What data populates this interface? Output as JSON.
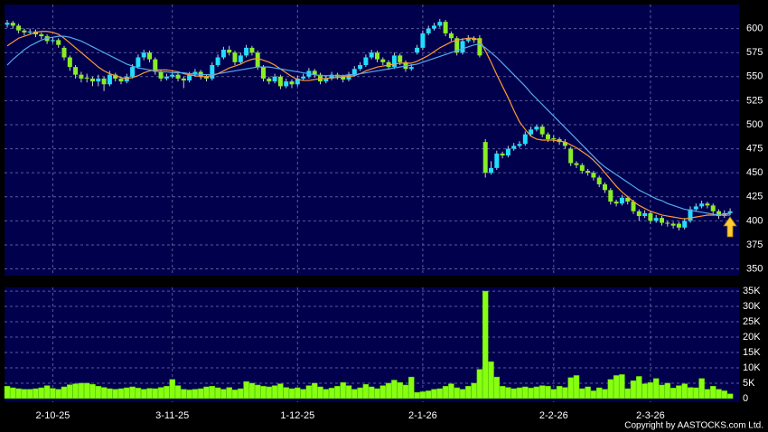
{
  "chart_data": [
    {
      "type": "candlestick",
      "up_color": "#22ddff",
      "down_color": "#88ee22",
      "ylim": [
        343,
        625
      ],
      "yticks": [
        350,
        375,
        400,
        425,
        450,
        475,
        500,
        525,
        550,
        575,
        600
      ],
      "grid": true,
      "ohlc": [
        [
          604,
          609,
          601,
          606
        ],
        [
          606,
          608,
          600,
          603
        ],
        [
          603,
          605,
          595,
          598
        ],
        [
          598,
          600,
          593,
          596
        ],
        [
          596,
          600,
          594,
          597
        ],
        [
          597,
          599,
          591,
          594
        ],
        [
          594,
          596,
          589,
          592
        ],
        [
          592,
          594,
          584,
          587
        ],
        [
          587,
          591,
          585,
          588
        ],
        [
          588,
          590,
          580,
          583
        ],
        [
          580,
          582,
          567,
          570
        ],
        [
          570,
          572,
          556,
          560
        ],
        [
          560,
          562,
          548,
          552
        ],
        [
          552,
          555,
          544,
          548
        ],
        [
          549,
          553,
          544,
          548
        ],
        [
          548,
          550,
          540,
          545
        ],
        [
          545,
          552,
          540,
          548
        ],
        [
          548,
          550,
          535,
          542
        ],
        [
          542,
          556,
          540,
          552
        ],
        [
          552,
          554,
          545,
          548
        ],
        [
          548,
          550,
          542,
          545
        ],
        [
          545,
          553,
          543,
          550
        ],
        [
          550,
          563,
          548,
          560
        ],
        [
          560,
          573,
          558,
          570
        ],
        [
          570,
          578,
          567,
          575
        ],
        [
          575,
          577,
          565,
          568
        ],
        [
          568,
          570,
          552,
          555
        ],
        [
          555,
          557,
          545,
          548
        ],
        [
          548,
          553,
          546,
          550
        ],
        [
          550,
          555,
          548,
          552
        ],
        [
          552,
          554,
          545,
          548
        ],
        [
          548,
          550,
          538,
          546
        ],
        [
          546,
          555,
          544,
          552
        ],
        [
          552,
          558,
          550,
          555
        ],
        [
          555,
          557,
          547,
          550
        ],
        [
          550,
          552,
          545,
          548
        ],
        [
          548,
          565,
          546,
          562
        ],
        [
          562,
          573,
          560,
          570
        ],
        [
          570,
          581,
          568,
          578
        ],
        [
          578,
          582,
          572,
          575
        ],
        [
          575,
          577,
          562,
          565
        ],
        [
          565,
          575,
          563,
          572
        ],
        [
          572,
          583,
          570,
          580
        ],
        [
          580,
          582,
          572,
          575
        ],
        [
          575,
          577,
          557,
          560
        ],
        [
          560,
          562,
          545,
          548
        ],
        [
          548,
          550,
          542,
          545
        ],
        [
          545,
          553,
          543,
          550
        ],
        [
          550,
          552,
          537,
          540
        ],
        [
          540,
          548,
          538,
          545
        ],
        [
          545,
          547,
          538,
          542
        ],
        [
          542,
          551,
          540,
          548
        ],
        [
          548,
          553,
          546,
          550
        ],
        [
          550,
          559,
          548,
          556
        ],
        [
          556,
          558,
          549,
          552
        ],
        [
          552,
          554,
          542,
          545
        ],
        [
          545,
          551,
          543,
          548
        ],
        [
          548,
          555,
          546,
          552
        ],
        [
          552,
          554,
          547,
          550
        ],
        [
          550,
          552,
          544,
          547
        ],
        [
          547,
          555,
          545,
          552
        ],
        [
          552,
          561,
          550,
          558
        ],
        [
          558,
          565,
          556,
          562
        ],
        [
          562,
          573,
          560,
          570
        ],
        [
          570,
          578,
          568,
          575
        ],
        [
          575,
          577,
          565,
          568
        ],
        [
          568,
          570,
          562,
          565
        ],
        [
          565,
          567,
          557,
          560
        ],
        [
          560,
          575,
          558,
          572
        ],
        [
          572,
          574,
          562,
          565
        ],
        [
          565,
          567,
          555,
          558
        ],
        [
          558,
          563,
          556,
          560
        ],
        [
          575,
          583,
          573,
          580
        ],
        [
          580,
          598,
          578,
          595
        ],
        [
          595,
          603,
          593,
          600
        ],
        [
          600,
          606,
          598,
          603
        ],
        [
          603,
          610,
          601,
          607
        ],
        [
          607,
          609,
          592,
          595
        ],
        [
          595,
          597,
          587,
          590
        ],
        [
          590,
          592,
          572,
          575
        ],
        [
          575,
          590,
          573,
          587
        ],
        [
          587,
          593,
          585,
          590
        ],
        [
          590,
          592,
          585,
          588
        ],
        [
          590,
          593,
          570,
          572
        ],
        [
          482,
          485,
          445,
          450
        ],
        [
          450,
          462,
          448,
          455
        ],
        [
          455,
          473,
          453,
          470
        ],
        [
          470,
          472,
          465,
          468
        ],
        [
          468,
          478,
          466,
          475
        ],
        [
          475,
          481,
          473,
          478
        ],
        [
          478,
          483,
          476,
          480
        ],
        [
          480,
          493,
          478,
          490
        ],
        [
          490,
          498,
          488,
          495
        ],
        [
          495,
          500,
          493,
          498
        ],
        [
          498,
          500,
          487,
          490
        ],
        [
          490,
          492,
          482,
          485
        ],
        [
          486,
          489,
          482,
          485
        ],
        [
          485,
          487,
          479,
          482
        ],
        [
          482,
          485,
          475,
          478
        ],
        [
          475,
          477,
          457,
          460
        ],
        [
          460,
          462,
          455,
          458
        ],
        [
          458,
          460,
          449,
          452
        ],
        [
          452,
          454,
          447,
          450
        ],
        [
          450,
          452,
          442,
          445
        ],
        [
          445,
          447,
          435,
          438
        ],
        [
          438,
          440,
          429,
          432
        ],
        [
          432,
          434,
          417,
          420
        ],
        [
          420,
          422,
          415,
          418
        ],
        [
          418,
          427,
          416,
          424
        ],
        [
          424,
          426,
          417,
          420
        ],
        [
          420,
          422,
          407,
          410
        ],
        [
          410,
          412,
          400,
          405
        ],
        [
          405,
          411,
          403,
          408
        ],
        [
          408,
          410,
          397,
          400
        ],
        [
          400,
          406,
          398,
          403
        ],
        [
          403,
          405,
          395,
          398
        ],
        [
          398,
          400,
          394,
          397
        ],
        [
          397,
          399,
          392,
          395
        ],
        [
          397,
          399,
          390,
          393
        ],
        [
          393,
          403,
          391,
          400
        ],
        [
          400,
          415,
          398,
          412
        ],
        [
          412,
          418,
          410,
          415
        ],
        [
          415,
          421,
          413,
          418
        ],
        [
          418,
          420,
          413,
          416
        ],
        [
          416,
          418,
          407,
          410
        ],
        [
          410,
          412,
          402,
          405
        ],
        [
          405,
          411,
          403,
          408
        ],
        [
          408,
          413,
          406,
          410
        ]
      ],
      "series": [
        {
          "color": "#ff9933",
          "values": [
            582,
            586,
            590,
            592,
            594,
            596,
            597,
            597,
            596,
            594,
            590,
            585,
            580,
            575,
            570,
            565,
            560,
            556,
            553,
            551,
            549,
            548,
            549,
            551,
            554,
            556,
            557,
            557,
            557,
            556,
            555,
            553,
            552,
            551,
            550,
            550,
            551,
            553,
            556,
            559,
            561,
            563,
            566,
            568,
            569,
            567,
            565,
            562,
            558,
            554,
            550,
            547,
            546,
            546,
            547,
            548,
            548,
            549,
            549,
            550,
            550,
            551,
            553,
            556,
            558,
            560,
            561,
            562,
            563,
            564,
            564,
            564,
            566,
            569,
            572,
            576,
            580,
            583,
            586,
            588,
            589,
            590,
            590,
            588,
            577,
            565,
            552,
            540,
            528,
            515,
            503,
            495,
            488,
            485,
            484,
            484,
            484,
            483,
            482,
            479,
            476,
            472,
            468,
            463,
            457,
            450,
            443,
            436,
            430,
            425,
            420,
            416,
            413,
            410,
            408,
            406,
            405,
            404,
            403,
            402,
            403,
            404,
            405,
            406,
            406,
            406,
            407,
            408
          ]
        },
        {
          "color": "#55aaee",
          "values": [
            562,
            568,
            573,
            578,
            582,
            585,
            588,
            590,
            591,
            592,
            592,
            591,
            589,
            587,
            584,
            581,
            578,
            575,
            572,
            569,
            566,
            563,
            561,
            559,
            558,
            557,
            556,
            555,
            555,
            554,
            554,
            554,
            553,
            553,
            552,
            552,
            552,
            553,
            554,
            555,
            556,
            557,
            558,
            559,
            560,
            560,
            560,
            559,
            558,
            557,
            556,
            555,
            554,
            553,
            552,
            551,
            551,
            551,
            551,
            551,
            552,
            552,
            553,
            554,
            555,
            556,
            557,
            558,
            559,
            560,
            561,
            562,
            563,
            565,
            567,
            569,
            571,
            573,
            575,
            577,
            579,
            581,
            583,
            584,
            580,
            575,
            570,
            564,
            558,
            552,
            546,
            540,
            533,
            527,
            521,
            515,
            509,
            503,
            497,
            491,
            485,
            479,
            473,
            467,
            461,
            456,
            452,
            448,
            444,
            440,
            436,
            432,
            429,
            426,
            423,
            421,
            418,
            416,
            414,
            412,
            411,
            410,
            409,
            408,
            407,
            406,
            406,
            406
          ]
        }
      ]
    },
    {
      "type": "bar",
      "color": "#88ff11",
      "ylim": [
        -1200,
        36200
      ],
      "yticks": [
        0,
        {
          "value": 5000,
          "label": "5K"
        },
        {
          "value": 10000,
          "label": "10K"
        },
        {
          "value": 15000,
          "label": "15K"
        },
        {
          "value": 20000,
          "label": "20K"
        },
        {
          "value": 25000,
          "label": "25K"
        },
        {
          "value": 30000,
          "label": "30K"
        },
        {
          "value": 35000,
          "label": "35K"
        }
      ],
      "grid": true,
      "categories": [
        null,
        null,
        null,
        null,
        null,
        null,
        null,
        null,
        "2-10-25",
        null,
        null,
        null,
        null,
        null,
        null,
        null,
        null,
        null,
        null,
        null,
        null,
        null,
        null,
        null,
        null,
        null,
        null,
        null,
        null,
        "3-11-25",
        null,
        null,
        null,
        null,
        null,
        null,
        null,
        null,
        null,
        null,
        null,
        null,
        null,
        null,
        null,
        null,
        null,
        null,
        null,
        null,
        null,
        "1-12-25",
        null,
        null,
        null,
        null,
        null,
        null,
        null,
        null,
        null,
        null,
        null,
        null,
        null,
        null,
        null,
        null,
        null,
        null,
        null,
        null,
        null,
        "2-1-26",
        null,
        null,
        null,
        null,
        null,
        null,
        null,
        null,
        null,
        null,
        null,
        null,
        null,
        null,
        null,
        null,
        null,
        null,
        null,
        null,
        null,
        null,
        "2-2-26",
        null,
        null,
        null,
        null,
        null,
        null,
        null,
        null,
        null,
        null,
        null,
        null,
        null,
        null,
        null,
        null,
        "2-3-26",
        null,
        null,
        null,
        null,
        null,
        null,
        null,
        null,
        null,
        null,
        null,
        null,
        null,
        null
      ],
      "values": [
        4000,
        3500,
        3200,
        3000,
        3000,
        3200,
        3500,
        4200,
        3300,
        3000,
        3800,
        4500,
        4800,
        5000,
        5000,
        4600,
        4000,
        3600,
        3200,
        3000,
        3200,
        3500,
        3800,
        3400,
        3000,
        3300,
        3200,
        3600,
        4000,
        6200,
        4200,
        3000,
        2800,
        3000,
        3200,
        3800,
        4000,
        3500,
        3000,
        3600,
        2800,
        3200,
        5500,
        5000,
        4400,
        4000,
        3800,
        4200,
        4800,
        3600,
        3200,
        3500,
        3000,
        4200,
        5000,
        3800,
        3000,
        3400,
        4000,
        5200,
        4200,
        3000,
        3500,
        4600,
        3800,
        3200,
        4200,
        5000,
        6000,
        5200,
        4400,
        7000,
        2000,
        2200,
        2500,
        3000,
        3200,
        4000,
        4800,
        3500,
        3000,
        4000,
        5000,
        9500,
        35000,
        12000,
        7000,
        4000,
        3600,
        3200,
        3500,
        3800,
        3400,
        3800,
        4200,
        4000,
        3000,
        4000,
        3600,
        6800,
        7500,
        3200,
        3800,
        2500,
        3500,
        3000,
        6200,
        7500,
        7800,
        3200,
        5800,
        7200,
        4800,
        5200,
        6500,
        4400,
        5000,
        3400,
        4200,
        4800,
        3600,
        3500,
        6500,
        3000,
        4000,
        3000,
        2500,
        1500
      ]
    },
    {
      "type": "footer",
      "text": "Copyright by AASTOCKS.com Ltd."
    }
  ]
}
